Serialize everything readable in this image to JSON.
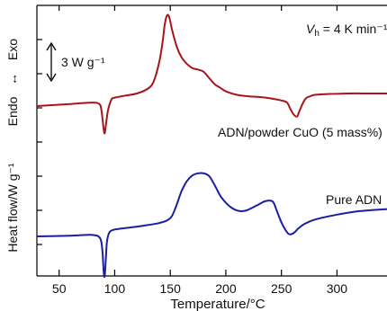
{
  "chart_data": {
    "type": "line",
    "xlabel": "Temperature/°C",
    "ylabel": "Heat flow/W g⁻¹",
    "ylabel_side_top": "Exo",
    "ylabel_side_bottom": "Endo",
    "ylabel_arrow": "↔",
    "x_ticks": [
      50,
      100,
      150,
      200,
      250,
      300
    ],
    "xlim": [
      30,
      345
    ],
    "scale_bar_label": "3 W g⁻¹",
    "rate_label": {
      "symbol": "V",
      "subscript": "h",
      "text": " = 4 K min⁻¹"
    },
    "series": [
      {
        "name": "ADN/powder CuO (5 mass%)",
        "color": "#a8141c",
        "x": [
          30,
          60,
          80,
          86,
          88,
          90,
          91,
          92,
          94,
          97,
          100,
          110,
          120,
          130,
          135,
          140,
          143,
          145,
          147,
          149,
          152,
          156,
          160,
          165,
          170,
          175,
          180,
          185,
          190,
          195,
          200,
          210,
          220,
          230,
          240,
          250,
          255,
          258,
          261,
          264,
          266,
          269,
          272,
          276,
          280,
          290,
          310,
          330,
          345
        ],
        "y": [
          0,
          0.3,
          0.5,
          0.3,
          -0.5,
          -3.2,
          -3.9,
          -2.8,
          -0.6,
          0.9,
          1.2,
          1.5,
          1.8,
          2.5,
          3.5,
          6.2,
          9.0,
          11.6,
          12.9,
          12.7,
          10.6,
          8.4,
          7.0,
          6.0,
          5.4,
          5.2,
          4.9,
          4.0,
          3.1,
          2.6,
          2.1,
          1.6,
          1.4,
          1.3,
          1.1,
          0.8,
          0.5,
          -0.4,
          -1.2,
          -1.5,
          -0.8,
          0.3,
          1.1,
          1.4,
          1.6,
          1.7,
          1.8,
          1.8,
          1.8
        ]
      },
      {
        "name": "Pure ADN",
        "color": "#1a1ea3",
        "x": [
          30,
          60,
          80,
          87,
          89,
          90,
          91,
          92,
          93,
          95,
          98,
          105,
          120,
          140,
          150,
          155,
          160,
          165,
          170,
          175,
          180,
          185,
          190,
          195,
          200,
          205,
          210,
          215,
          220,
          230,
          235,
          240,
          243,
          246,
          250,
          255,
          258,
          262,
          265,
          270,
          280,
          300,
          320,
          345
        ],
        "y": [
          0,
          0.1,
          0.2,
          -0.3,
          -2.2,
          -4.9,
          -5.7,
          -3.2,
          -0.8,
          0.5,
          0.9,
          1.1,
          1.4,
          1.9,
          2.6,
          4.2,
          6.4,
          7.9,
          8.7,
          9.0,
          9.0,
          8.6,
          7.3,
          5.8,
          4.8,
          4.1,
          3.7,
          3.6,
          3.8,
          4.6,
          5.0,
          5.1,
          4.8,
          3.6,
          2.0,
          0.6,
          0.3,
          0.6,
          1.1,
          1.7,
          2.4,
          3.1,
          3.6,
          3.9
        ]
      }
    ]
  }
}
